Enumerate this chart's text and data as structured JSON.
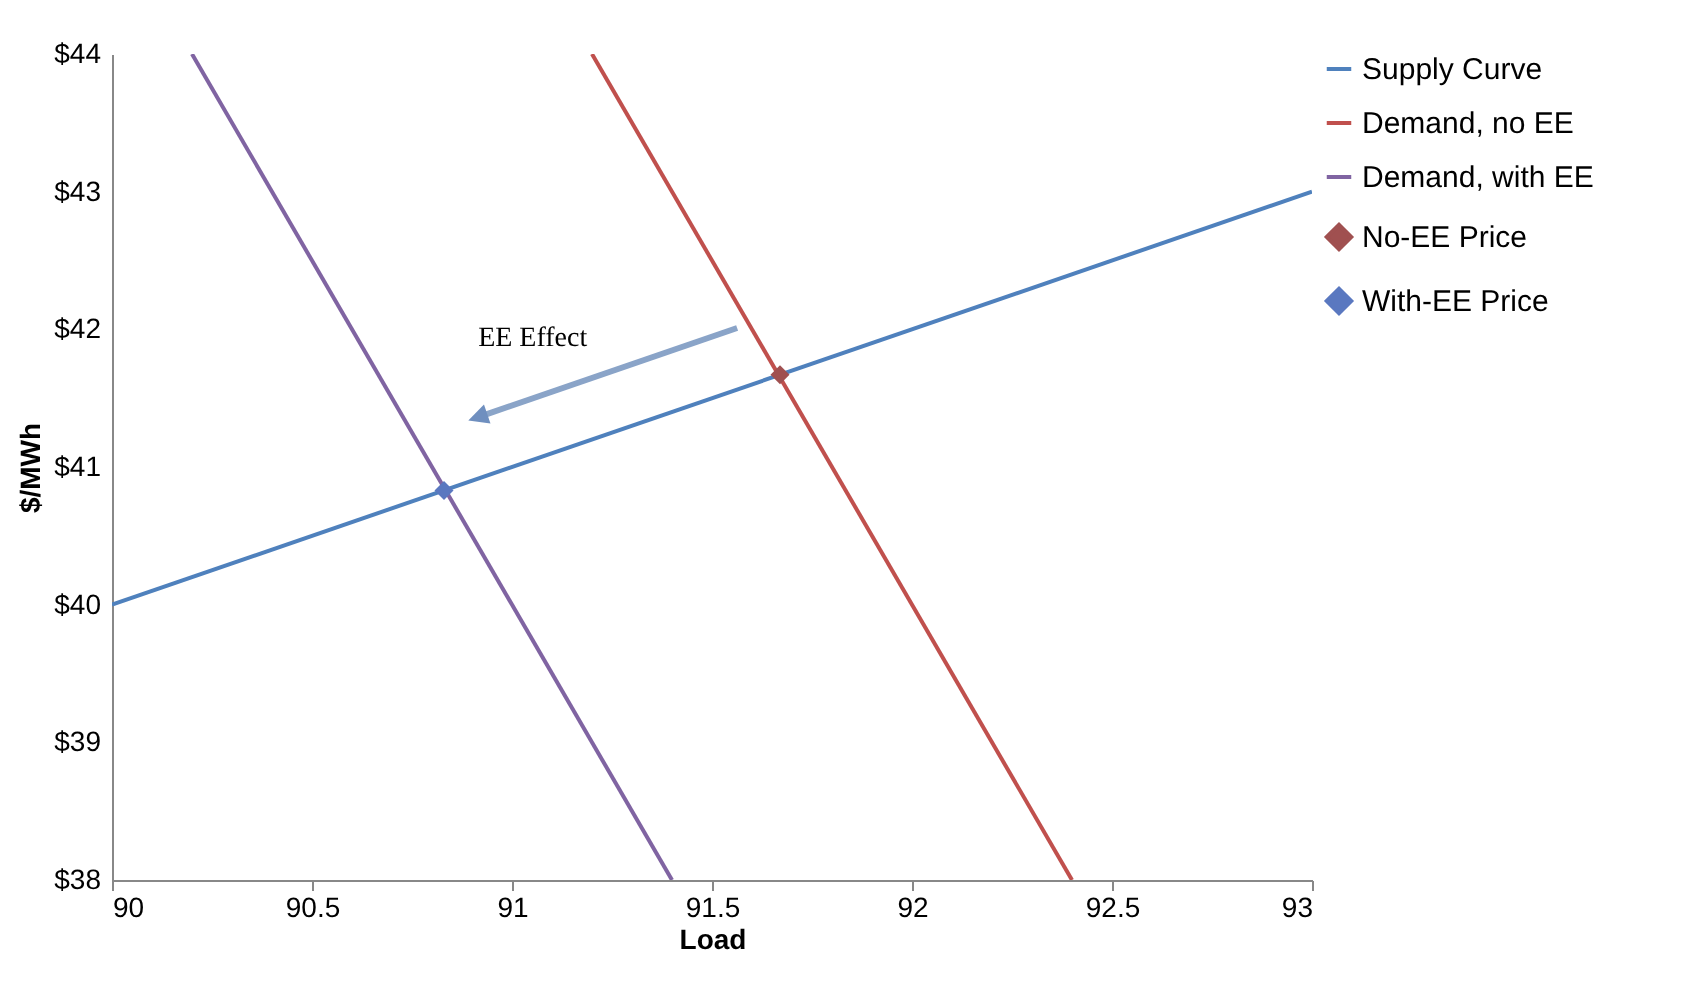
{
  "chart_data": {
    "type": "line",
    "xlabel": "Load",
    "ylabel": "$/MWh",
    "xlim": [
      90,
      93
    ],
    "xticks": [
      90,
      90.5,
      91,
      91.5,
      92,
      92.5,
      93
    ],
    "ylim": [
      38,
      44
    ],
    "yticks": [
      {
        "value": 38,
        "label": "$38"
      },
      {
        "value": 39,
        "label": "$39"
      },
      {
        "value": 40,
        "label": "$40"
      },
      {
        "value": 41,
        "label": "$41"
      },
      {
        "value": 42,
        "label": "$42"
      },
      {
        "value": 43,
        "label": "$43"
      },
      {
        "value": 44,
        "label": "$44"
      }
    ],
    "series": [
      {
        "name": "Supply Curve",
        "color": "#4f81bd",
        "x": [
          90,
          93
        ],
        "values": [
          40,
          43
        ]
      },
      {
        "name": "Demand, no EE",
        "color": "#c0504d",
        "x": [
          91.2,
          92.4
        ],
        "values": [
          44,
          38
        ]
      },
      {
        "name": "Demand, with EE",
        "color": "#8064a2",
        "x": [
          90.2,
          91.4
        ],
        "values": [
          44,
          38
        ]
      },
      {
        "name": "No-EE Price",
        "type": "scatter",
        "marker": "diamond",
        "color": "#a05050",
        "x": [
          91.67
        ],
        "values": [
          41.67
        ]
      },
      {
        "name": "With-EE Price",
        "type": "scatter",
        "marker": "diamond",
        "color": "#5a78c0",
        "x": [
          90.83
        ],
        "values": [
          40.83
        ]
      }
    ],
    "annotations": [
      "EE Effect"
    ],
    "grid": false,
    "legend": "right"
  }
}
